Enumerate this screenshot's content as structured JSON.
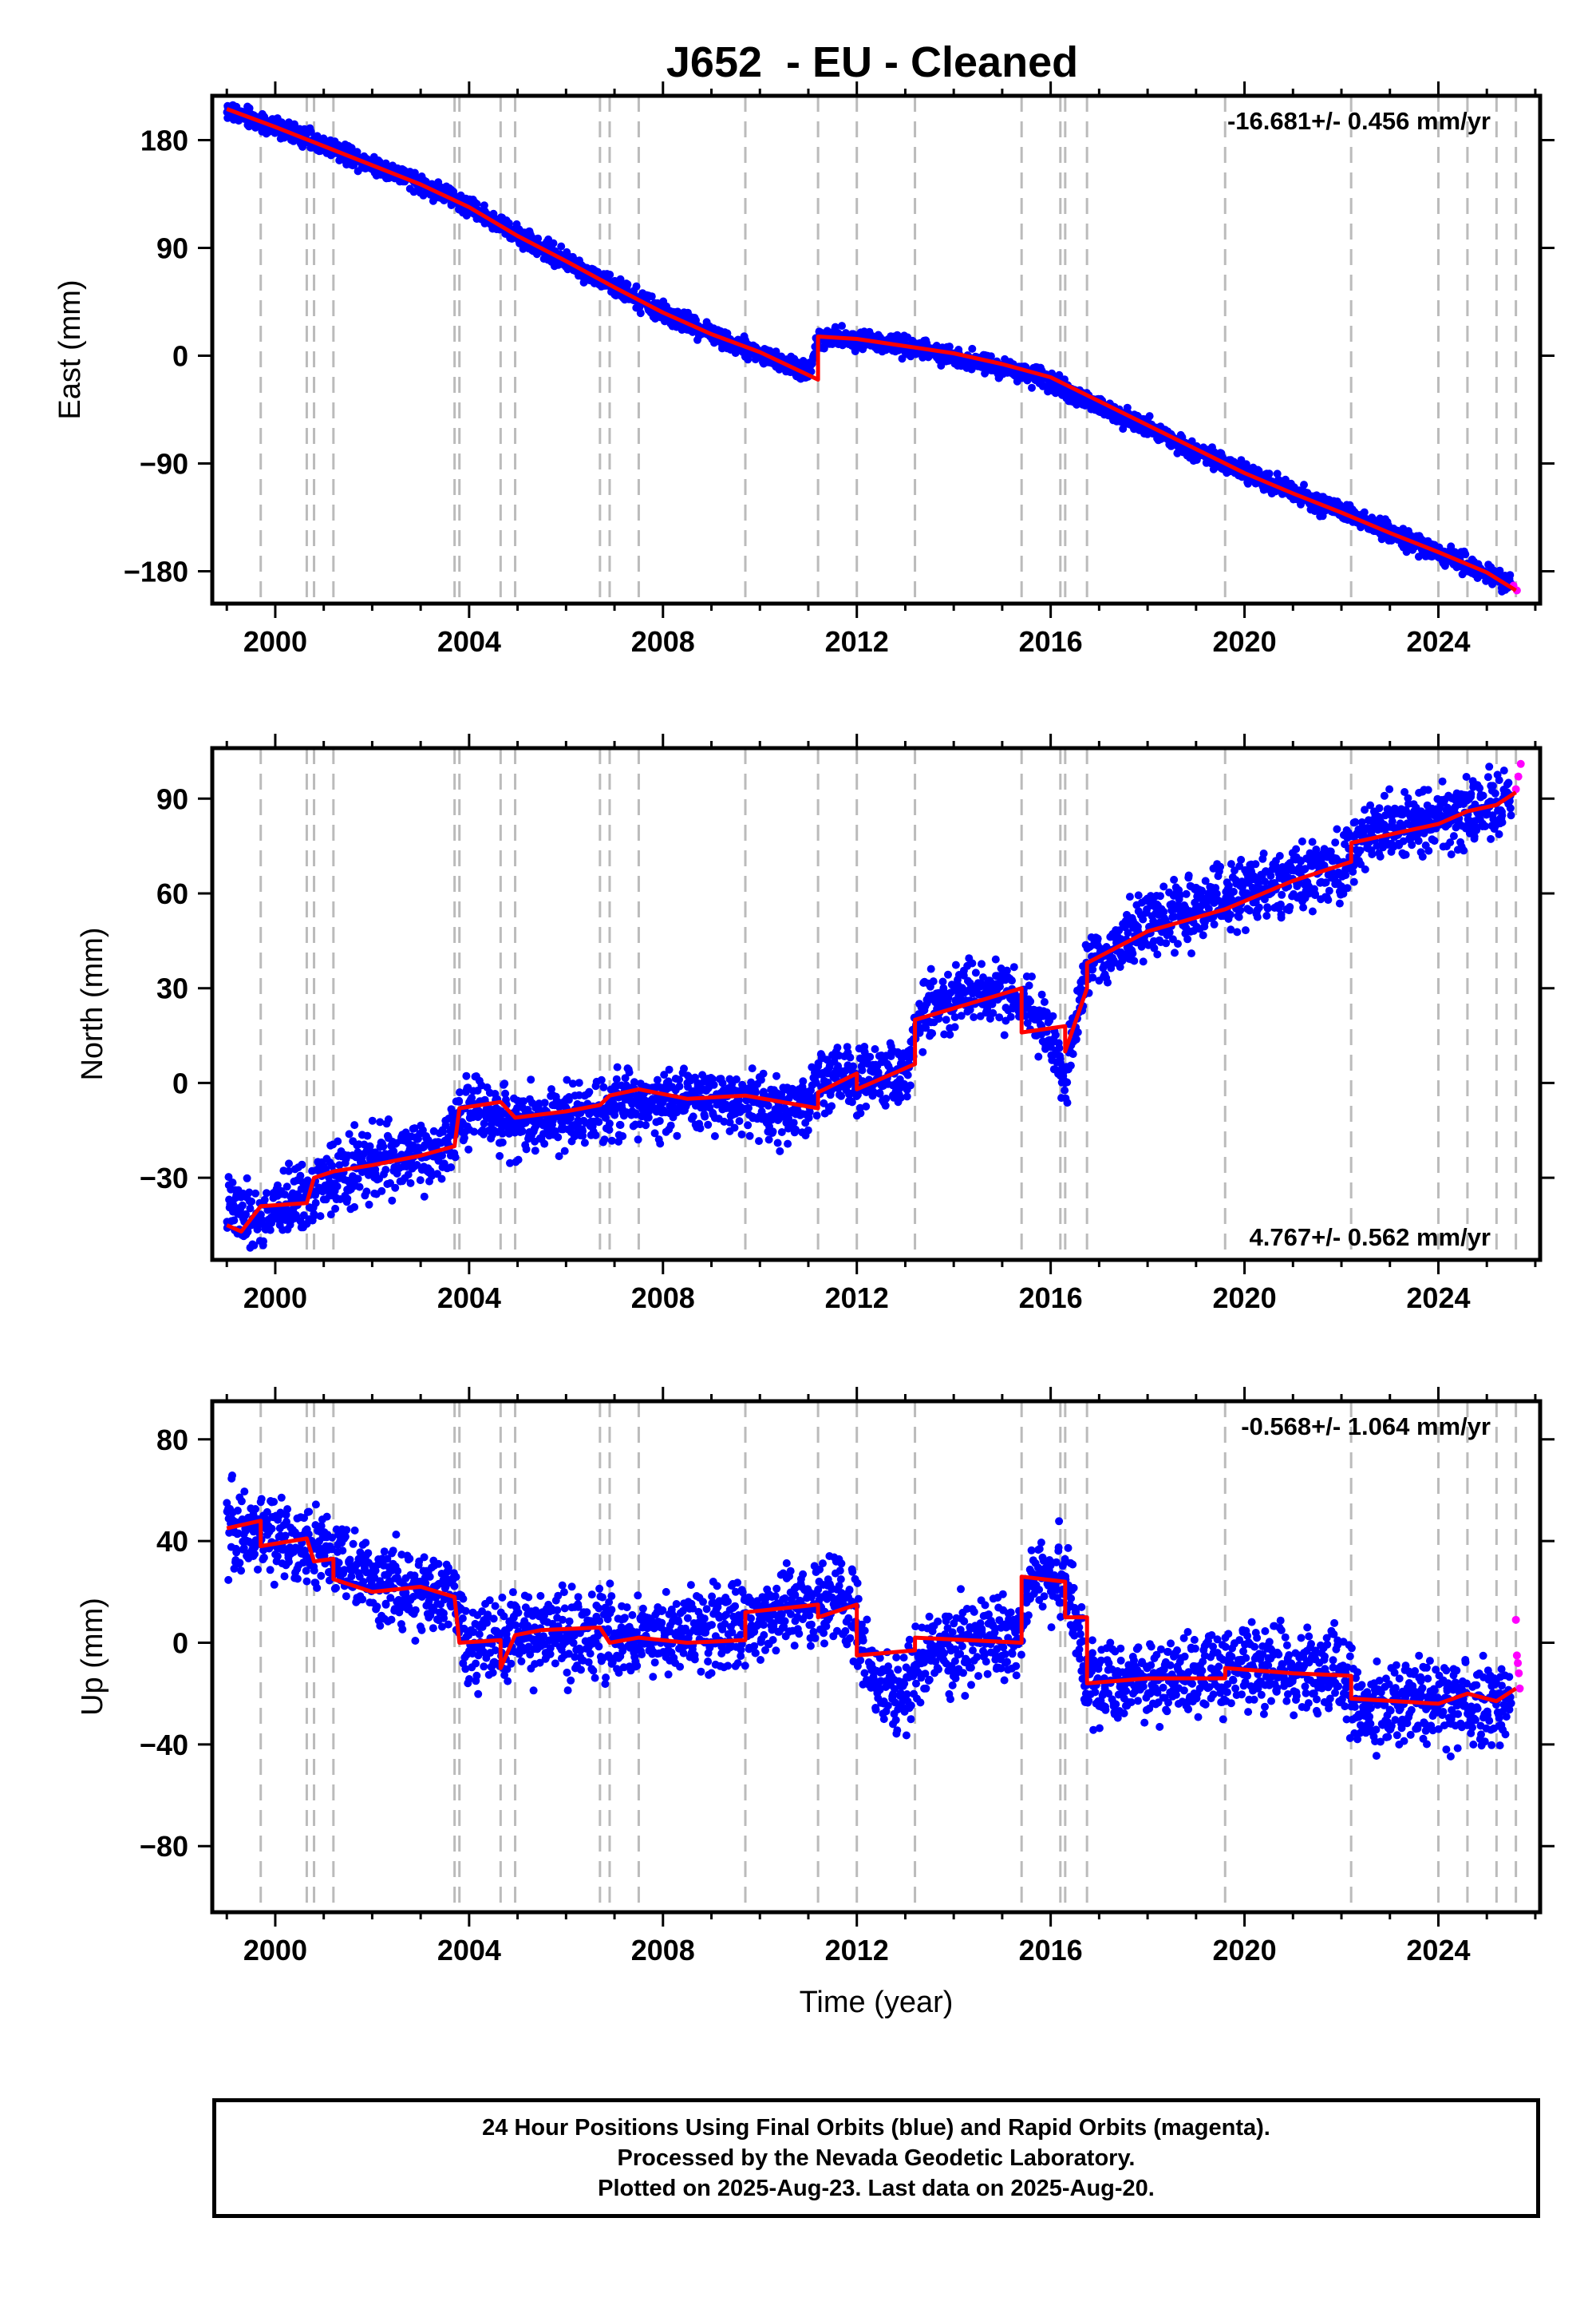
{
  "title": "J652  - EU - Cleaned",
  "xlabel": "Time (year)",
  "footer": {
    "line1": "24 Hour Positions Using Final Orbits (blue) and Rapid Orbits (magenta).",
    "line2": "Processed by the Nevada Geodetic Laboratory.",
    "line3": "Plotted on 2025-Aug-23. Last data on 2025-Aug-20."
  },
  "colors": {
    "final_orbits": "#0000ff",
    "rapid_orbits": "#ff00ff",
    "model": "#ff0000",
    "event_lines": "#bbbbbb"
  },
  "chart_data": [
    {
      "type": "scatter",
      "panel": "east",
      "ylabel": "East (mm)",
      "rate_label": "-16.681+/- 0.456 mm/yr",
      "rate_position": "top-right",
      "xlim": [
        1998.7,
        2026.1
      ],
      "ylim": [
        -207,
        217
      ],
      "x_ticks": [
        2000,
        2004,
        2008,
        2012,
        2016,
        2020,
        2024
      ],
      "y_ticks": [
        -180,
        -90,
        0,
        90,
        180
      ],
      "y_tick_labels": [
        "−180",
        "−90",
        "0",
        "90",
        "180"
      ],
      "event_lines": [
        1999.7,
        2000.65,
        2000.8,
        2001.2,
        2003.7,
        2003.8,
        2004.65,
        2004.95,
        2006.7,
        2006.9,
        2007.5,
        2009.7,
        2011.2,
        2012.0,
        2013.2,
        2015.4,
        2016.2,
        2016.3,
        2016.75,
        2019.6,
        2022.2,
        2024.0,
        2024.6,
        2025.2,
        2025.6
      ],
      "series": [
        {
          "name": "Final Orbits",
          "role": "final",
          "x": [
            1999.0,
            2000.0,
            2001.0,
            2002.0,
            2003.0,
            2004.0,
            2005.0,
            2006.0,
            2007.0,
            2008.0,
            2009.0,
            2010.0,
            2011.0,
            2011.2,
            2012.0,
            2012.7,
            2013.5,
            2014.5,
            2015.5,
            2016.2,
            2017.0,
            2018.0,
            2019.0,
            2020.0,
            2021.0,
            2022.0,
            2023.0,
            2024.0,
            2025.0,
            2025.5
          ],
          "y": [
            205,
            191,
            176,
            160,
            144,
            125,
            101,
            79,
            57,
            36,
            18,
            2,
            -15,
            16,
            14,
            10,
            4,
            -5,
            -15,
            -26,
            -42,
            -60,
            -80,
            -98,
            -114,
            -130,
            -147,
            -164,
            -182,
            -192
          ],
          "noise": 4
        },
        {
          "name": "Rapid Orbits",
          "role": "rapid",
          "x": [
            2025.55,
            2025.62
          ],
          "y": [
            -192,
            -196
          ],
          "noise": 2
        },
        {
          "name": "Model",
          "role": "model",
          "x": [
            1999.0,
            2000.0,
            2001.0,
            2002.0,
            2003.0,
            2004.0,
            2005.0,
            2006.0,
            2007.0,
            2008.0,
            2009.0,
            2010.0,
            2011.2,
            2011.2,
            2012.0,
            2013.0,
            2014.0,
            2015.0,
            2016.0,
            2017.0,
            2018.0,
            2019.0,
            2020.0,
            2021.0,
            2022.0,
            2023.0,
            2024.0,
            2025.0,
            2025.6
          ],
          "y": [
            206,
            191,
            175,
            159,
            143,
            124,
            100,
            79,
            57,
            36,
            18,
            3,
            -20,
            16,
            14,
            8,
            2,
            -7,
            -18,
            -38,
            -58,
            -78,
            -98,
            -115,
            -131,
            -148,
            -164,
            -181,
            -196
          ]
        }
      ]
    },
    {
      "type": "scatter",
      "panel": "north",
      "ylabel": "North (mm)",
      "rate_label": "4.767+/- 0.562 mm/yr",
      "rate_position": "bottom-right",
      "xlim": [
        1998.7,
        2026.1
      ],
      "ylim": [
        -56,
        106
      ],
      "x_ticks": [
        2000,
        2004,
        2008,
        2012,
        2016,
        2020,
        2024
      ],
      "y_ticks": [
        -30,
        0,
        30,
        60,
        90
      ],
      "y_tick_labels": [
        "−30",
        "0",
        "30",
        "60",
        "90"
      ],
      "event_lines": [
        1999.7,
        2000.65,
        2000.8,
        2001.2,
        2003.7,
        2003.8,
        2004.65,
        2004.95,
        2006.7,
        2006.9,
        2007.5,
        2009.7,
        2011.2,
        2012.0,
        2013.2,
        2015.4,
        2016.2,
        2016.3,
        2016.75,
        2019.6,
        2022.2,
        2024.0,
        2024.6,
        2025.2,
        2025.6
      ],
      "series": [
        {
          "name": "Final Orbits",
          "role": "final",
          "x": [
            1999.0,
            1999.6,
            2000.5,
            2001.2,
            2002.0,
            2003.0,
            2003.6,
            2003.8,
            2005.0,
            2006.0,
            2007.0,
            2008.0,
            2009.0,
            2010.0,
            2011.0,
            2011.3,
            2012.0,
            2013.0,
            2013.3,
            2014.0,
            2015.0,
            2015.4,
            2016.0,
            2016.3,
            2016.8,
            2018.0,
            2019.0,
            2020.0,
            2021.0,
            2022.0,
            2022.5,
            2023.5,
            2024.5,
            2025.5
          ],
          "y": [
            -40,
            -44,
            -36,
            -30,
            -25,
            -22,
            -20,
            -8,
            -12,
            -10,
            -7,
            -5,
            -5,
            -7,
            -9,
            2,
            0,
            3,
            22,
            26,
            30,
            26,
            15,
            0,
            38,
            50,
            55,
            60,
            64,
            68,
            78,
            83,
            85,
            90
          ],
          "noise": 5
        },
        {
          "name": "Rapid Orbits",
          "role": "rapid",
          "x": [
            2025.6,
            2025.65,
            2025.7
          ],
          "y": [
            93,
            97,
            101
          ],
          "noise": 2
        },
        {
          "name": "Model",
          "role": "model",
          "x": [
            1999.0,
            1999.3,
            1999.7,
            2000.65,
            2000.8,
            2001.2,
            2002.0,
            2003.0,
            2003.7,
            2003.8,
            2004.65,
            2004.95,
            2006.0,
            2006.7,
            2006.9,
            2007.5,
            2008.5,
            2009.7,
            2011.2,
            2011.2,
            2012.0,
            2012.0,
            2013.2,
            2013.2,
            2015.4,
            2015.4,
            2016.3,
            2016.3,
            2016.75,
            2016.75,
            2018.0,
            2019.6,
            2021.0,
            2022.2,
            2022.2,
            2024.0,
            2024.6,
            2025.2,
            2025.6
          ],
          "y": [
            -45,
            -47,
            -39,
            -38,
            -30,
            -28,
            -26,
            -23,
            -20,
            -8,
            -6,
            -11,
            -9,
            -7,
            -4,
            -2,
            -5,
            -4,
            -8,
            -3,
            3,
            -2,
            6,
            20,
            30,
            16,
            18,
            10,
            30,
            38,
            48,
            55,
            64,
            70,
            76,
            82,
            86,
            88,
            92
          ]
        }
      ]
    },
    {
      "type": "scatter",
      "panel": "up",
      "ylabel": "Up (mm)",
      "rate_label": "-0.568+/- 1.064 mm/yr",
      "rate_position": "top-right",
      "xlim": [
        1998.7,
        2026.1
      ],
      "ylim": [
        -106,
        95
      ],
      "x_ticks": [
        2000,
        2004,
        2008,
        2012,
        2016,
        2020,
        2024
      ],
      "x_tick_labels": [
        "2000",
        "2004",
        "2008",
        "2012",
        "2016",
        "2020",
        "2024"
      ],
      "y_ticks": [
        -80,
        -40,
        0,
        40,
        80
      ],
      "y_tick_labels": [
        "−80",
        "−40",
        "0",
        "40",
        "80"
      ],
      "event_lines": [
        1999.7,
        2000.65,
        2000.8,
        2001.2,
        2003.7,
        2003.8,
        2004.65,
        2004.95,
        2006.7,
        2006.9,
        2007.5,
        2009.7,
        2011.2,
        2012.0,
        2013.2,
        2015.4,
        2016.2,
        2016.3,
        2016.75,
        2019.6,
        2022.2,
        2024.0,
        2024.6,
        2025.2,
        2025.6
      ],
      "series": [
        {
          "name": "Final Orbits",
          "role": "final",
          "x": [
            1999.0,
            2000.0,
            2001.0,
            2002.0,
            2003.0,
            2003.7,
            2004.0,
            2005.0,
            2006.0,
            2007.0,
            2008.0,
            2009.0,
            2010.0,
            2011.0,
            2011.9,
            2012.3,
            2012.8,
            2013.5,
            2014.5,
            2015.3,
            2015.6,
            2016.3,
            2016.8,
            2018.0,
            2019.0,
            2020.0,
            2021.0,
            2022.0,
            2022.3,
            2023.0,
            2024.0,
            2025.0,
            2025.5
          ],
          "y": [
            45,
            42,
            35,
            25,
            20,
            18,
            0,
            2,
            4,
            2,
            3,
            6,
            10,
            15,
            15,
            -10,
            -25,
            -5,
            0,
            0,
            25,
            25,
            -15,
            -16,
            -14,
            -10,
            -10,
            -10,
            -24,
            -24,
            -24,
            -24,
            -24
          ],
          "noise": 8
        },
        {
          "name": "Rapid Orbits",
          "role": "rapid",
          "x": [
            2025.6,
            2025.62,
            2025.64,
            2025.66,
            2025.68
          ],
          "y": [
            9,
            -5,
            -8,
            -12,
            -18
          ],
          "noise": 1
        },
        {
          "name": "Model",
          "role": "model",
          "x": [
            1999.0,
            1999.7,
            1999.7,
            2000.65,
            2000.8,
            2001.2,
            2001.2,
            2002.0,
            2003.0,
            2003.7,
            2003.8,
            2004.65,
            2004.65,
            2004.95,
            2005.5,
            2006.7,
            2006.9,
            2007.5,
            2008.5,
            2009.7,
            2009.7,
            2011.2,
            2011.2,
            2012.0,
            2012.0,
            2013.2,
            2013.2,
            2015.4,
            2015.4,
            2016.3,
            2016.3,
            2016.75,
            2016.75,
            2018.0,
            2019.6,
            2019.6,
            2021.0,
            2022.2,
            2022.2,
            2024.0,
            2024.6,
            2025.2,
            2025.6
          ],
          "y": [
            45,
            48,
            38,
            41,
            32,
            33,
            25,
            20,
            22,
            18,
            0,
            1,
            -10,
            3,
            5,
            6,
            0,
            2,
            0,
            1,
            12,
            15,
            10,
            15,
            -5,
            -3,
            2,
            0,
            26,
            24,
            10,
            10,
            -16,
            -14,
            -14,
            -10,
            -12,
            -13,
            -22,
            -24,
            -20,
            -23,
            -18
          ]
        }
      ]
    }
  ]
}
